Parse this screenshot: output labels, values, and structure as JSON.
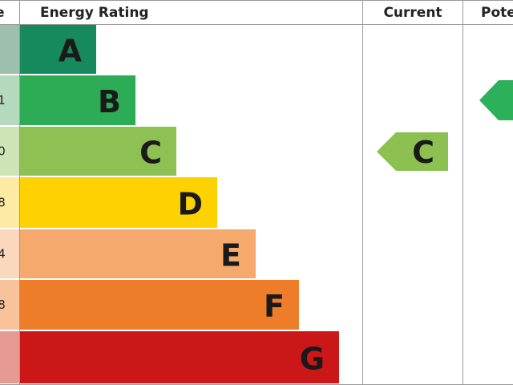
{
  "header": {
    "score": "e",
    "rating": "Energy Rating",
    "current": "Current",
    "potential": "Pote"
  },
  "rows": [
    {
      "letter": "A"
    },
    {
      "score": "1",
      "letter": "B"
    },
    {
      "score": "0",
      "letter": "C"
    },
    {
      "score": "8",
      "letter": "D"
    },
    {
      "score": "4",
      "letter": "E"
    },
    {
      "score": "8",
      "letter": "F"
    },
    {
      "letter": "G"
    }
  ],
  "current": {
    "letter": "C"
  }
}
